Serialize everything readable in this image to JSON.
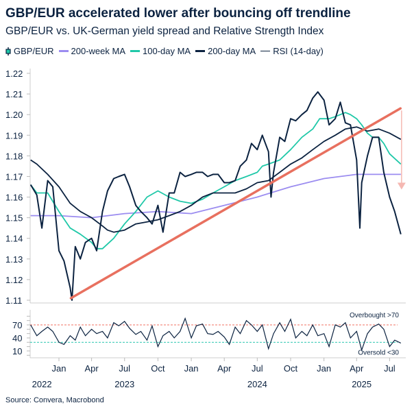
{
  "title": "GBP/EUR accelerated lower after bouncing off trendline",
  "subtitle": "GBP/EUR vs. UK-German yield spread and Relative Strength Index",
  "source": "Source: Convera, Macrobond",
  "colors": {
    "gbpeur": "#0b2240",
    "ma200w": "#9b8cf0",
    "ma100d": "#1fc8a8",
    "ma200d": "#0b2240",
    "rsi": "#0b2240",
    "trendline": "#e8705f",
    "arrow": "#f5b8b2",
    "overbought": "#f07062",
    "oversold": "#2cc7b0"
  },
  "legend": [
    {
      "label": "GBP/EUR",
      "icon": "candlestick-icon"
    },
    {
      "label": "200-week MA"
    },
    {
      "label": "100-day MA"
    },
    {
      "label": "200-day MA"
    },
    {
      "label": "RSI (14-day)"
    }
  ],
  "chart_data": [
    {
      "type": "line",
      "ylim": [
        1.11,
        1.22
      ],
      "yticks": [
        "1.22",
        "1.21",
        "1.20",
        "1.19",
        "1.18",
        "1.17",
        "1.16",
        "1.15",
        "1.14",
        "1.13",
        "1.12",
        "1.11"
      ],
      "grid": false,
      "legend_position": "top",
      "series": [
        {
          "name": "GBP/EUR",
          "x": [
            "2022-10-15",
            "2022-11-01",
            "2022-11-15",
            "2022-12-01",
            "2022-12-15",
            "2023-01-01",
            "2023-01-15",
            "2023-02-01",
            "2023-02-06",
            "2023-02-15",
            "2023-03-01",
            "2023-03-15",
            "2023-04-01",
            "2023-04-15",
            "2023-05-01",
            "2023-05-15",
            "2023-06-01",
            "2023-06-15",
            "2023-07-01",
            "2023-07-15",
            "2023-08-01",
            "2023-08-15",
            "2023-09-01",
            "2023-09-15",
            "2023-10-01",
            "2023-10-15",
            "2023-11-01",
            "2023-11-15",
            "2023-12-01",
            "2023-12-15",
            "2024-01-01",
            "2024-01-15",
            "2024-02-01",
            "2024-02-15",
            "2024-03-01",
            "2024-03-15",
            "2024-04-01",
            "2024-04-15",
            "2024-05-01",
            "2024-05-15",
            "2024-06-01",
            "2024-06-15",
            "2024-07-01",
            "2024-07-15",
            "2024-08-01",
            "2024-08-08",
            "2024-08-15",
            "2024-09-01",
            "2024-09-15",
            "2024-10-01",
            "2024-10-15",
            "2024-11-01",
            "2024-11-15",
            "2024-12-01",
            "2024-12-15",
            "2025-01-01",
            "2025-01-15",
            "2025-02-01",
            "2025-02-15",
            "2025-03-01",
            "2025-03-15",
            "2025-04-01",
            "2025-04-10",
            "2025-04-15",
            "2025-05-01",
            "2025-05-15",
            "2025-06-01",
            "2025-06-15",
            "2025-07-01",
            "2025-07-15",
            "2025-08-01"
          ],
          "y": [
            1.166,
            1.161,
            1.145,
            1.168,
            1.165,
            1.134,
            1.129,
            1.116,
            1.11,
            1.136,
            1.13,
            1.138,
            1.14,
            1.134,
            1.153,
            1.163,
            1.169,
            1.17,
            1.171,
            1.165,
            1.156,
            1.153,
            1.15,
            1.147,
            1.156,
            1.143,
            1.162,
            1.162,
            1.172,
            1.17,
            1.171,
            1.172,
            1.172,
            1.17,
            1.171,
            1.171,
            1.167,
            1.167,
            1.168,
            1.175,
            1.178,
            1.186,
            1.183,
            1.19,
            1.182,
            1.16,
            1.172,
            1.189,
            1.187,
            1.198,
            1.197,
            1.2,
            1.202,
            1.208,
            1.211,
            1.207,
            1.195,
            1.198,
            1.206,
            1.196,
            1.195,
            1.178,
            1.145,
            1.167,
            1.18,
            1.189,
            1.189,
            1.172,
            1.16,
            1.153,
            1.142
          ]
        },
        {
          "name": "200-week MA",
          "x": [
            "2022-10-15",
            "2023-01-01",
            "2023-04-01",
            "2023-07-01",
            "2023-10-01",
            "2024-01-01",
            "2024-04-01",
            "2024-07-01",
            "2024-10-01",
            "2025-01-01",
            "2025-04-01",
            "2025-08-01"
          ],
          "y": [
            1.151,
            1.151,
            1.15,
            1.152,
            1.153,
            1.152,
            1.156,
            1.16,
            1.165,
            1.169,
            1.171,
            1.171
          ]
        },
        {
          "name": "100-day MA",
          "x": [
            "2022-10-15",
            "2022-11-01",
            "2022-12-01",
            "2023-01-01",
            "2023-02-01",
            "2023-03-01",
            "2023-04-01",
            "2023-04-15",
            "2023-05-01",
            "2023-06-01",
            "2023-07-01",
            "2023-08-01",
            "2023-09-01",
            "2023-10-01",
            "2023-11-01",
            "2023-12-01",
            "2024-01-01",
            "2024-02-01",
            "2024-03-01",
            "2024-04-01",
            "2024-05-01",
            "2024-06-01",
            "2024-07-01",
            "2024-07-15",
            "2024-08-01",
            "2024-09-01",
            "2024-10-01",
            "2024-11-01",
            "2024-12-01",
            "2024-12-20",
            "2025-01-15",
            "2025-02-01",
            "2025-02-15",
            "2025-03-01",
            "2025-03-15",
            "2025-04-01",
            "2025-04-15",
            "2025-05-01",
            "2025-05-15",
            "2025-06-01",
            "2025-06-15",
            "2025-07-01",
            "2025-08-01"
          ],
          "y": [
            1.166,
            1.162,
            1.162,
            1.153,
            1.145,
            1.142,
            1.138,
            1.135,
            1.135,
            1.14,
            1.147,
            1.153,
            1.16,
            1.163,
            1.16,
            1.158,
            1.157,
            1.159,
            1.162,
            1.165,
            1.168,
            1.17,
            1.172,
            1.175,
            1.176,
            1.178,
            1.183,
            1.189,
            1.193,
            1.198,
            1.198,
            1.199,
            1.2,
            1.201,
            1.2,
            1.198,
            1.195,
            1.191,
            1.189,
            1.189,
            1.186,
            1.181,
            1.176
          ]
        },
        {
          "name": "200-day MA",
          "x": [
            "2022-10-15",
            "2022-11-01",
            "2022-12-01",
            "2023-01-01",
            "2023-02-01",
            "2023-03-01",
            "2023-04-01",
            "2023-05-01",
            "2023-05-15",
            "2023-06-01",
            "2023-07-01",
            "2023-08-01",
            "2023-09-01",
            "2023-10-01",
            "2023-11-01",
            "2023-12-01",
            "2024-01-01",
            "2024-02-01",
            "2024-03-01",
            "2024-04-01",
            "2024-05-01",
            "2024-06-01",
            "2024-07-01",
            "2024-08-01",
            "2024-09-01",
            "2024-10-01",
            "2024-11-01",
            "2024-12-01",
            "2025-01-01",
            "2025-02-01",
            "2025-03-01",
            "2025-04-01",
            "2025-05-01",
            "2025-06-01",
            "2025-07-01",
            "2025-08-01"
          ],
          "y": [
            1.178,
            1.176,
            1.171,
            1.165,
            1.157,
            1.153,
            1.15,
            1.146,
            1.144,
            1.143,
            1.144,
            1.147,
            1.148,
            1.149,
            1.151,
            1.153,
            1.156,
            1.16,
            1.162,
            1.162,
            1.162,
            1.164,
            1.167,
            1.168,
            1.172,
            1.176,
            1.179,
            1.183,
            1.187,
            1.19,
            1.193,
            1.194,
            1.192,
            1.193,
            1.191,
            1.188
          ]
        }
      ],
      "trendline": {
        "x": [
          "2023-02-03",
          "2025-07-31"
        ],
        "y": [
          1.111,
          1.203
        ]
      },
      "arrow": {
        "x": "2025-08-03",
        "from": 1.202,
        "to": 1.164
      }
    },
    {
      "type": "line",
      "ylim": [
        0,
        100
      ],
      "yticks": [
        "70",
        "40",
        "10"
      ],
      "annotations": [
        {
          "text": "Overbought >70",
          "level": 70
        },
        {
          "text": "Oversold <30",
          "level": 30
        }
      ],
      "series": [
        {
          "name": "RSI (14-day)",
          "x": [
            "2022-10-15",
            "2022-11-01",
            "2022-11-15",
            "2022-12-01",
            "2022-12-15",
            "2023-01-01",
            "2023-01-15",
            "2023-02-01",
            "2023-02-15",
            "2023-03-01",
            "2023-03-15",
            "2023-04-01",
            "2023-04-15",
            "2023-05-01",
            "2023-05-15",
            "2023-06-01",
            "2023-06-15",
            "2023-07-01",
            "2023-07-15",
            "2023-08-01",
            "2023-08-15",
            "2023-09-01",
            "2023-09-15",
            "2023-10-01",
            "2023-10-15",
            "2023-11-01",
            "2023-11-15",
            "2023-12-01",
            "2023-12-15",
            "2024-01-01",
            "2024-01-15",
            "2024-02-01",
            "2024-02-15",
            "2024-03-01",
            "2024-03-15",
            "2024-04-01",
            "2024-04-15",
            "2024-05-01",
            "2024-05-15",
            "2024-06-01",
            "2024-06-15",
            "2024-07-01",
            "2024-07-15",
            "2024-08-01",
            "2024-08-15",
            "2024-09-01",
            "2024-09-15",
            "2024-10-01",
            "2024-10-15",
            "2024-11-01",
            "2024-11-15",
            "2024-12-01",
            "2024-12-15",
            "2025-01-01",
            "2025-01-15",
            "2025-02-01",
            "2025-02-15",
            "2025-03-01",
            "2025-03-15",
            "2025-04-01",
            "2025-04-15",
            "2025-05-01",
            "2025-05-15",
            "2025-06-01",
            "2025-06-15",
            "2025-07-01",
            "2025-07-15",
            "2025-08-01"
          ],
          "y": [
            70,
            45,
            55,
            65,
            55,
            30,
            25,
            45,
            35,
            65,
            45,
            60,
            50,
            55,
            40,
            75,
            68,
            78,
            62,
            48,
            55,
            35,
            68,
            20,
            45,
            55,
            40,
            55,
            85,
            40,
            68,
            72,
            50,
            48,
            55,
            42,
            25,
            65,
            50,
            80,
            70,
            55,
            70,
            15,
            50,
            75,
            55,
            83,
            40,
            55,
            45,
            70,
            45,
            50,
            20,
            70,
            65,
            75,
            40,
            55,
            12,
            50,
            65,
            72,
            60,
            20,
            35,
            28
          ]
        }
      ]
    }
  ],
  "xaxis": {
    "months": [
      {
        "label": "Jan",
        "x": "2023-01-01"
      },
      {
        "label": "Apr",
        "x": "2023-04-01"
      },
      {
        "label": "Jul",
        "x": "2023-07-01"
      },
      {
        "label": "Oct",
        "x": "2023-10-01"
      },
      {
        "label": "Jan",
        "x": "2024-01-01"
      },
      {
        "label": "Apr",
        "x": "2024-04-01"
      },
      {
        "label": "Jul",
        "x": "2024-07-01"
      },
      {
        "label": "Oct",
        "x": "2024-10-01"
      },
      {
        "label": "Jan",
        "x": "2025-01-01"
      },
      {
        "label": "Apr",
        "x": "2025-04-01"
      },
      {
        "label": "Jul",
        "x": "2025-07-01"
      }
    ],
    "years": [
      {
        "label": "2022",
        "x": "2022-11-15"
      },
      {
        "label": "2023",
        "x": "2023-07-01"
      },
      {
        "label": "2024",
        "x": "2024-07-01"
      },
      {
        "label": "2025",
        "x": "2025-04-15"
      }
    ]
  }
}
